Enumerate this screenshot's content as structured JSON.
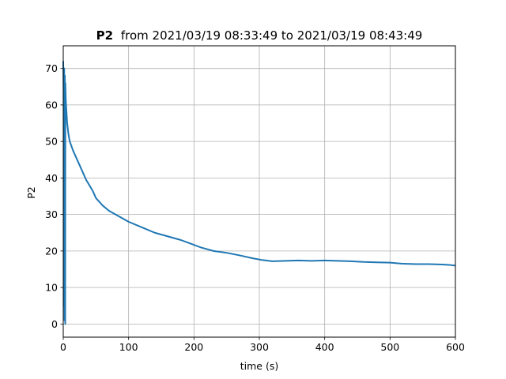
{
  "chart_data": {
    "type": "line",
    "title": {
      "bold": "P2",
      "rest": "from 2021/03/19 08:33:49 to 2021/03/19 08:43:49"
    },
    "xlabel": "time (s)",
    "ylabel": "P2",
    "xlim": [
      0,
      600
    ],
    "ylim": [
      -3.6,
      76.2
    ],
    "xticks": [
      0,
      100,
      200,
      300,
      400,
      500,
      600
    ],
    "yticks": [
      0,
      10,
      20,
      30,
      40,
      50,
      60,
      70
    ],
    "grid": true,
    "line_color": "#1f77b4",
    "series": [
      {
        "x": [
          0,
          0.5,
          1,
          1.5,
          2,
          2.5,
          3,
          3.2,
          3.5,
          4,
          5,
          6,
          8,
          10,
          15,
          20,
          25,
          30,
          35,
          40,
          45,
          50,
          55,
          60,
          70,
          80,
          90,
          100,
          120,
          140,
          160,
          180,
          195,
          210,
          230,
          250,
          270,
          290,
          305,
          320,
          340,
          360,
          380,
          400,
          420,
          440,
          460,
          480,
          500,
          520,
          540,
          560,
          580,
          590,
          600
        ],
        "y": [
          72,
          64,
          5,
          70,
          1,
          68,
          0,
          66,
          64,
          61,
          58,
          55,
          52,
          50,
          47.5,
          45.5,
          43.5,
          41.5,
          39.5,
          38,
          36.5,
          34.5,
          33.5,
          32.5,
          31,
          30,
          29,
          28,
          26.5,
          25,
          24,
          23,
          22,
          21,
          20,
          19.5,
          18.8,
          18,
          17.5,
          17.2,
          17.3,
          17.4,
          17.3,
          17.4,
          17.3,
          17.2,
          17,
          16.9,
          16.8,
          16.5,
          16.4,
          16.4,
          16.3,
          16.2,
          16
        ]
      }
    ]
  }
}
